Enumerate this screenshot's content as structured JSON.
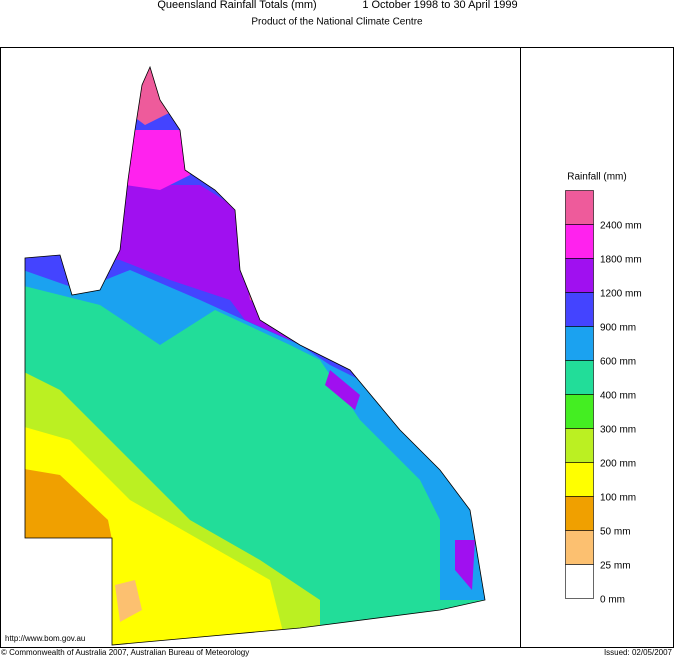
{
  "header": {
    "title": "Queensland Rainfall Totals (mm)",
    "period": "1 October 1998 to 30 April 1999",
    "subtitle": "Product of the National Climate Centre"
  },
  "legend": {
    "title": "Rainfall (mm)",
    "items": [
      {
        "label": "2400 mm",
        "color": "#ee5b9b"
      },
      {
        "label": "1800 mm",
        "color": "#ff22ee"
      },
      {
        "label": "1200 mm",
        "color": "#a010f0"
      },
      {
        "label": "900 mm",
        "color": "#4444ff"
      },
      {
        "label": "600 mm",
        "color": "#1ba2f0"
      },
      {
        "label": "400 mm",
        "color": "#22dd99"
      },
      {
        "label": "300 mm",
        "color": "#44ee22"
      },
      {
        "label": "200 mm",
        "color": "#bbf022"
      },
      {
        "label": "100 mm",
        "color": "#ffff00"
      },
      {
        "label": "50 mm",
        "color": "#f0a000"
      },
      {
        "label": "25 mm",
        "color": "#fcc070"
      },
      {
        "label": "0 mm",
        "color": "#ffffff"
      }
    ]
  },
  "footer": {
    "url": "http://www.bom.gov.au",
    "copyright": "© Commonwealth of Australia 2007, Australian Bureau of Meteorology",
    "issued": "Issued: 02/05/2007"
  }
}
